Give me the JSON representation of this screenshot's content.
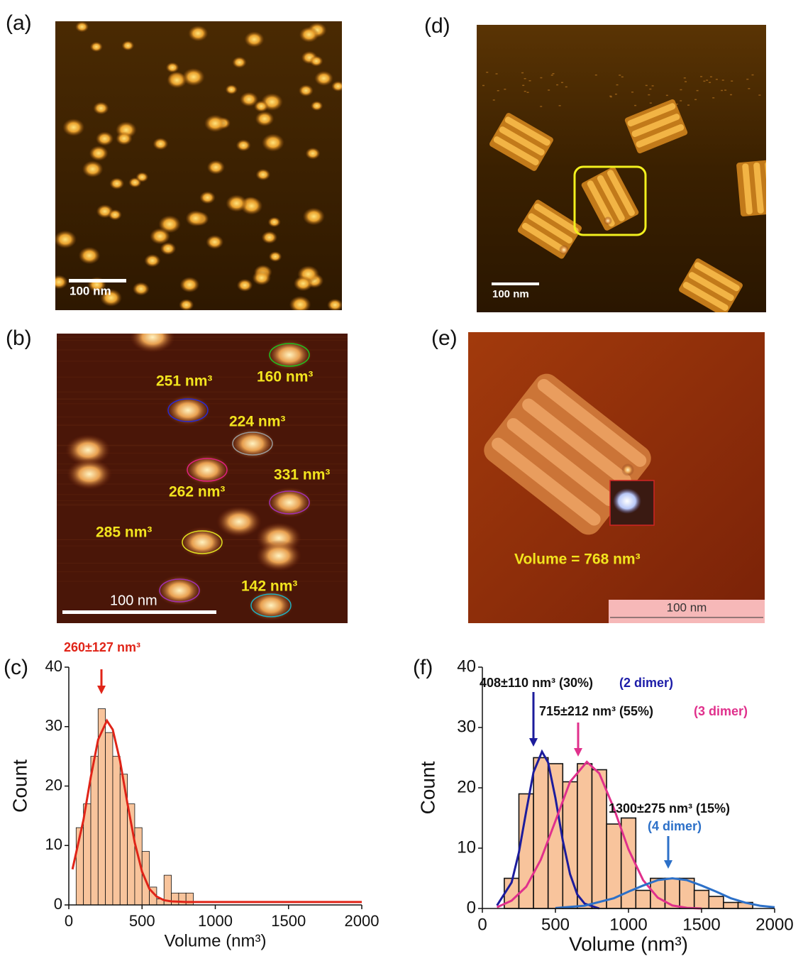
{
  "panels": {
    "a": {
      "label": "(a)",
      "scale_bar": "100 nm"
    },
    "b": {
      "label": "(b)",
      "scale_bar": "100 nm",
      "volumes": [
        "251 nm³",
        "160 nm³",
        "224 nm³",
        "331 nm³",
        "262 nm³",
        "285 nm³",
        "142 nm³"
      ]
    },
    "c": {
      "label": "(c)"
    },
    "d": {
      "label": "(d)",
      "scale_bar": "100 nm"
    },
    "e": {
      "label": "(e)",
      "scale_bar": "100 nm",
      "volume": "Volume = 768 nm³"
    },
    "f": {
      "label": "(f)"
    }
  },
  "chart_data": [
    {
      "type": "histogram",
      "annotation": "260±127 nm³",
      "xlabel": "Volume (nm³)",
      "ylabel": "Count",
      "bins": [
        50,
        100,
        150,
        200,
        250,
        300,
        350,
        400,
        450,
        500,
        550,
        600,
        650,
        700,
        750,
        800,
        850
      ],
      "values": [
        13,
        17,
        25,
        33,
        29,
        25,
        22,
        17,
        13,
        9,
        3,
        1,
        5,
        2,
        2,
        2
      ],
      "color": "#f8c49c",
      "fits": [
        {
          "color": "#e02418",
          "x": [
            25,
            100,
            150,
            200,
            260,
            300,
            350,
            400,
            450,
            500,
            550,
            600,
            650,
            700,
            800,
            1000,
            1500,
            2000
          ],
          "values": [
            6.0,
            14.3,
            21.5,
            27.8,
            31.0,
            29.5,
            24.2,
            17.1,
            10.5,
            5.6,
            2.7,
            1.4,
            0.8,
            0.6,
            0.5,
            0.5,
            0.5,
            0.5
          ]
        }
      ],
      "xlim": [
        0,
        2000
      ],
      "ylim": [
        0,
        40
      ],
      "xticks": [
        0,
        500,
        1000,
        1500,
        2000
      ],
      "yticks": [
        0,
        10,
        20,
        30,
        40
      ]
    },
    {
      "type": "histogram",
      "xlabel": "Volume (nm³)",
      "ylabel": "Count",
      "bins": [
        150,
        250,
        350,
        450,
        550,
        650,
        750,
        850,
        950,
        1050,
        1150,
        1250,
        1350,
        1450,
        1550,
        1650,
        1750,
        1850
      ],
      "values": [
        5,
        19,
        25,
        24,
        21,
        24,
        23,
        14,
        15,
        3,
        5,
        5,
        5,
        3,
        2,
        1,
        1
      ],
      "color": "#f8c49c",
      "fits": [
        {
          "color": "#1c1c9c",
          "x": [
            100,
            200,
            250,
            300,
            350,
            408,
            450,
            500,
            550,
            600,
            650,
            700,
            800
          ],
          "values": [
            0.5,
            4.3,
            9.3,
            16.1,
            22.6,
            26,
            24.2,
            18.3,
            11.3,
            5.7,
            2.3,
            0.8,
            0.0
          ]
        },
        {
          "color": "#e0308c",
          "x": [
            100,
            200,
            300,
            400,
            500,
            600,
            715,
            800,
            900,
            1000,
            1100,
            1200,
            1300,
            1400,
            1500
          ],
          "values": [
            0.2,
            1.3,
            3.6,
            8.1,
            14.5,
            21.0,
            24.3,
            22.4,
            16.6,
            9.8,
            4.7,
            1.8,
            0.5,
            0.1,
            0.0
          ]
        },
        {
          "color": "#2c70c8",
          "x": [
            500,
            700,
            900,
            1000,
            1100,
            1200,
            1300,
            1400,
            1500,
            1600,
            1700,
            1800,
            1900,
            2000
          ],
          "values": [
            0.07,
            0.46,
            1.7,
            2.8,
            3.8,
            4.7,
            5,
            4.7,
            3.8,
            2.8,
            1.7,
            0.96,
            0.46,
            0.2
          ]
        }
      ],
      "annotations": [
        {
          "text": "408±110 nm³ (30%)",
          "color": "#111111"
        },
        {
          "text": "(2 dimer)",
          "color": "#1c1ca8"
        },
        {
          "text": "715±212 nm³ (55%)",
          "color": "#111111"
        },
        {
          "text": "(3 dimer)",
          "color": "#e0308c"
        },
        {
          "text": "1300±275 nm³ (15%)",
          "color": "#111111"
        },
        {
          "text": "(4 dimer)",
          "color": "#2c70c8"
        }
      ],
      "xlim": [
        0,
        2000
      ],
      "ylim": [
        0,
        40
      ],
      "xticks": [
        0,
        500,
        1000,
        1500,
        2000
      ],
      "yticks": [
        0,
        10,
        20,
        30,
        40
      ]
    }
  ]
}
